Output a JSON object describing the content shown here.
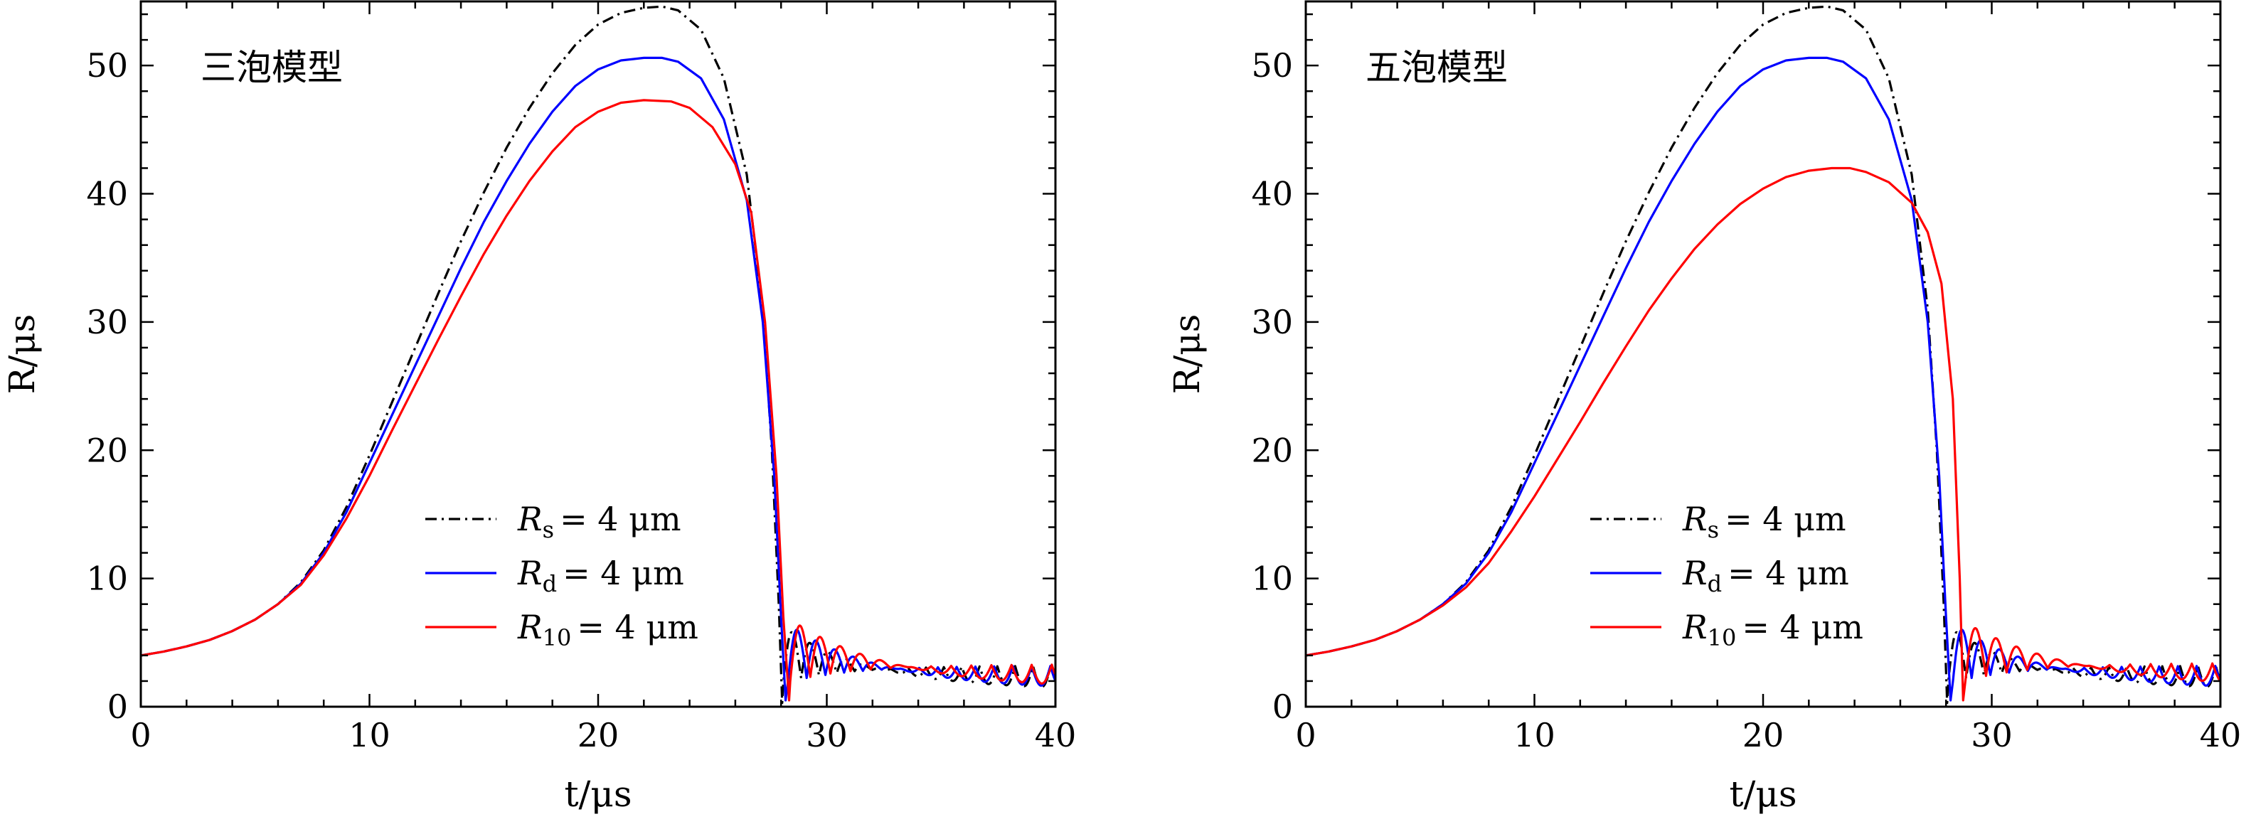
{
  "chart_data": [
    {
      "type": "line",
      "title": "三泡模型",
      "xlabel": "t/μs",
      "ylabel": "R/μs",
      "xlim": [
        0,
        40
      ],
      "ylim": [
        0,
        55
      ],
      "xticks": [
        0,
        10,
        20,
        30,
        40
      ],
      "yticks": [
        0,
        10,
        20,
        30,
        40,
        50
      ],
      "grid": false,
      "legend_position": "bottom-center",
      "series": [
        {
          "name": "R_s = 4 μm",
          "label": {
            "main": "R",
            "sub": "s",
            "rest": "= 4 μm"
          },
          "color": "#000000",
          "style": "dashdot",
          "x": [
            0,
            1,
            2,
            3,
            4,
            5,
            6,
            7,
            8,
            9,
            10,
            11,
            12,
            13,
            14,
            15,
            16,
            17,
            18,
            19,
            20,
            21,
            22,
            22.8,
            23.5,
            24.5,
            25.5,
            26.5,
            27.2,
            27.6,
            27.9,
            28.05
          ],
          "y": [
            4.0,
            4.3,
            4.7,
            5.2,
            5.9,
            6.8,
            8.0,
            9.7,
            12.2,
            15.6,
            19.6,
            23.8,
            28.0,
            32.2,
            36.3,
            40.1,
            43.6,
            46.7,
            49.4,
            51.6,
            53.2,
            54.1,
            54.5,
            54.6,
            54.3,
            52.8,
            49.0,
            41.5,
            31.0,
            20.0,
            8.0,
            0.3
          ],
          "ringdown": {
            "t_start": 28.1,
            "t_end": 40,
            "period": 0.78,
            "amp0": 5.0,
            "decay": 0.26,
            "equilibrium": 3.2
          }
        },
        {
          "name": "R_d = 4 μm",
          "label": {
            "main": "R",
            "sub": "d",
            "rest": "= 4 μm"
          },
          "color": "#0000ff",
          "style": "solid",
          "x": [
            0,
            1,
            2,
            3,
            4,
            5,
            6,
            7,
            8,
            9,
            10,
            11,
            12,
            13,
            14,
            15,
            16,
            17,
            18,
            19,
            20,
            21,
            22,
            22.8,
            23.5,
            24.5,
            25.5,
            26.5,
            27.2,
            27.7,
            28.0,
            28.2
          ],
          "y": [
            4.0,
            4.3,
            4.7,
            5.2,
            5.9,
            6.8,
            8.0,
            9.6,
            12.0,
            15.2,
            19.0,
            22.8,
            26.6,
            30.4,
            34.2,
            37.8,
            41.0,
            43.9,
            46.4,
            48.4,
            49.7,
            50.4,
            50.6,
            50.6,
            50.3,
            49.0,
            45.8,
            39.5,
            30.0,
            18.0,
            7.0,
            0.5
          ],
          "ringdown": {
            "t_start": 28.3,
            "t_end": 40,
            "period": 0.82,
            "amp0": 5.2,
            "decay": 0.24,
            "equilibrium": 3.2
          }
        },
        {
          "name": "R_10 = 4 μm",
          "label": {
            "main": "R",
            "sub": "10",
            "rest": "= 4 μm"
          },
          "color": "#ff0000",
          "style": "solid",
          "x": [
            0,
            1,
            2,
            3,
            4,
            5,
            6,
            7,
            8,
            9,
            10,
            11,
            12,
            13,
            14,
            15,
            16,
            17,
            18,
            19,
            20,
            21,
            22,
            23.2,
            24,
            25,
            26,
            26.7,
            27.3,
            27.8,
            28.1,
            28.35
          ],
          "y": [
            4.0,
            4.3,
            4.7,
            5.2,
            5.9,
            6.8,
            8.0,
            9.5,
            11.8,
            14.7,
            18.0,
            21.6,
            25.1,
            28.6,
            32.0,
            35.3,
            38.3,
            41.0,
            43.3,
            45.2,
            46.4,
            47.1,
            47.3,
            47.2,
            46.7,
            45.2,
            42.3,
            38.5,
            30.0,
            18.0,
            7.0,
            0.5
          ],
          "ringdown": {
            "t_start": 28.4,
            "t_end": 40,
            "period": 0.88,
            "amp0": 5.5,
            "decay": 0.22,
            "equilibrium": 3.3
          }
        }
      ]
    },
    {
      "type": "line",
      "title": "五泡模型",
      "xlabel": "t/μs",
      "ylabel": "R/μs",
      "xlim": [
        0,
        40
      ],
      "ylim": [
        0,
        55
      ],
      "xticks": [
        0,
        10,
        20,
        30,
        40
      ],
      "yticks": [
        0,
        10,
        20,
        30,
        40,
        50
      ],
      "grid": false,
      "legend_position": "bottom-center",
      "series": [
        {
          "name": "R_s = 4 μm",
          "label": {
            "main": "R",
            "sub": "s",
            "rest": "= 4 μm"
          },
          "color": "#000000",
          "style": "dashdot",
          "x": [
            0,
            1,
            2,
            3,
            4,
            5,
            6,
            7,
            8,
            9,
            10,
            11,
            12,
            13,
            14,
            15,
            16,
            17,
            18,
            19,
            20,
            21,
            22,
            22.8,
            23.5,
            24.5,
            25.5,
            26.5,
            27.2,
            27.6,
            27.9,
            28.05
          ],
          "y": [
            4.0,
            4.3,
            4.7,
            5.2,
            5.9,
            6.8,
            8.0,
            9.7,
            12.2,
            15.6,
            19.6,
            23.8,
            28.0,
            32.2,
            36.3,
            40.1,
            43.6,
            46.7,
            49.4,
            51.6,
            53.2,
            54.1,
            54.5,
            54.6,
            54.3,
            52.8,
            49.0,
            41.5,
            31.0,
            20.0,
            8.0,
            0.3
          ],
          "ringdown": {
            "t_start": 28.1,
            "t_end": 40,
            "period": 0.78,
            "amp0": 5.0,
            "decay": 0.26,
            "equilibrium": 3.2
          }
        },
        {
          "name": "R_d = 4 μm",
          "label": {
            "main": "R",
            "sub": "d",
            "rest": "= 4 μm"
          },
          "color": "#0000ff",
          "style": "solid",
          "x": [
            0,
            1,
            2,
            3,
            4,
            5,
            6,
            7,
            8,
            9,
            10,
            11,
            12,
            13,
            14,
            15,
            16,
            17,
            18,
            19,
            20,
            21,
            22,
            22.8,
            23.5,
            24.5,
            25.5,
            26.5,
            27.2,
            27.7,
            28.0,
            28.2
          ],
          "y": [
            4.0,
            4.3,
            4.7,
            5.2,
            5.9,
            6.8,
            8.0,
            9.6,
            12.0,
            15.2,
            19.0,
            22.8,
            26.6,
            30.4,
            34.2,
            37.8,
            41.0,
            43.9,
            46.4,
            48.4,
            49.7,
            50.4,
            50.6,
            50.6,
            50.3,
            49.0,
            45.8,
            39.5,
            30.0,
            18.0,
            7.0,
            0.5
          ],
          "ringdown": {
            "t_start": 28.3,
            "t_end": 40,
            "period": 0.82,
            "amp0": 5.2,
            "decay": 0.24,
            "equilibrium": 3.2
          }
        },
        {
          "name": "R_10 = 4 μm",
          "label": {
            "main": "R",
            "sub": "10",
            "rest": "= 4 μm"
          },
          "color": "#ff0000",
          "style": "solid",
          "x": [
            0,
            1,
            2,
            3,
            4,
            5,
            6,
            7,
            8,
            9,
            10,
            11,
            12,
            13,
            14,
            15,
            16,
            17,
            18,
            19,
            20,
            21,
            22,
            23,
            23.8,
            24.5,
            25.5,
            26.5,
            27.2,
            27.8,
            28.3,
            28.6,
            28.75
          ],
          "y": [
            4.0,
            4.3,
            4.7,
            5.2,
            5.9,
            6.8,
            7.9,
            9.3,
            11.2,
            13.7,
            16.4,
            19.3,
            22.2,
            25.2,
            28.1,
            30.9,
            33.4,
            35.7,
            37.6,
            39.2,
            40.4,
            41.3,
            41.8,
            42.0,
            42.0,
            41.7,
            40.9,
            39.3,
            37.0,
            33.0,
            24.0,
            10.0,
            0.5
          ],
          "ringdown": {
            "t_start": 28.85,
            "t_end": 40,
            "period": 0.9,
            "amp0": 5.2,
            "decay": 0.2,
            "equilibrium": 3.4
          }
        }
      ]
    }
  ]
}
